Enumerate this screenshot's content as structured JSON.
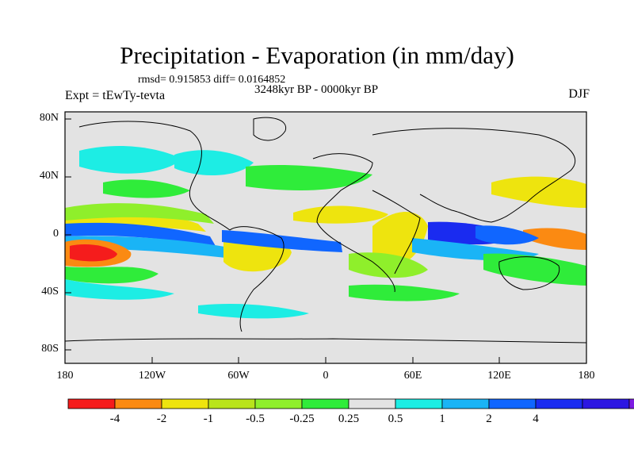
{
  "title": "Precipitation - Evaporation (in mm/day)",
  "stats": "rmsd= 0.915853 diff= 0.0164852",
  "period": "3248kyr BP - 0000kyr BP",
  "experiment": "Expt = tEwTy-tevta",
  "season": "DJF",
  "map": {
    "lat_ticks": [
      "80N",
      "40N",
      "0",
      "40S",
      "80S"
    ],
    "lon_ticks": [
      "180",
      "120W",
      "60W",
      "0",
      "60E",
      "120E",
      "180"
    ],
    "background_color": "#e3e3e3"
  },
  "colorbar": {
    "colors": [
      "#f51c1c",
      "#fb8a12",
      "#eee40e",
      "#b9e41b",
      "#8fef2b",
      "#2fec3a",
      "#e3e3e3",
      "#1dede4",
      "#1ab4f6",
      "#1066ff",
      "#1a2bf0",
      "#2c16e2",
      "#7d1ce2"
    ],
    "labels": [
      "-4",
      "-2",
      "-1",
      "-0.5",
      "-0.25",
      "0.25",
      "0.5",
      "1",
      "2",
      "4"
    ]
  }
}
